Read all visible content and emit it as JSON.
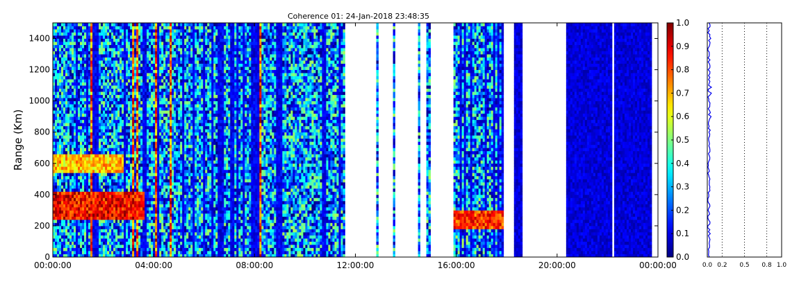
{
  "chart_data": [
    {
      "type": "heatmap",
      "title": "Coherence 01: 24-Jan-2018 23:48:35",
      "xlabel": "",
      "ylabel": "Range (Km)",
      "x_tick_labels": [
        "00:00:00",
        "04:00:00",
        "08:00:00",
        "12:00:00",
        "16:00:00",
        "20:00:00",
        "00:00:00"
      ],
      "x_range_hours": [
        0,
        24
      ],
      "y_ticks": [
        0,
        200,
        400,
        600,
        800,
        1000,
        1200,
        1400
      ],
      "ylim": [
        0,
        1500
      ],
      "colorbar": {
        "colormap": "jet",
        "ticks": [
          "0.0",
          "0.1",
          "0.2",
          "0.3",
          "0.4",
          "0.5",
          "0.6",
          "0.7",
          "0.8",
          "0.9",
          "1.0"
        ],
        "range": [
          0,
          1
        ]
      },
      "data_gaps_hours": [
        [
          11.55,
          12.8
        ],
        [
          12.95,
          13.45
        ],
        [
          13.55,
          14.45
        ],
        [
          14.55,
          14.8
        ],
        [
          14.95,
          15.85
        ],
        [
          17.85,
          18.3
        ],
        [
          18.6,
          20.4
        ],
        [
          22.15,
          22.25
        ],
        [
          23.75,
          24
        ]
      ],
      "low_coherence_blocks_hours": [
        [
          18.3,
          18.6
        ],
        [
          20.4,
          22.15
        ],
        [
          22.25,
          23.75
        ]
      ],
      "strong_echo_bands": [
        {
          "start_hour": 0.0,
          "end_hour": 3.6,
          "range_km": [
            240,
            420
          ],
          "coherence": 0.9
        },
        {
          "start_hour": 0.0,
          "end_hour": 2.8,
          "range_km": [
            540,
            660
          ],
          "coherence": 0.7
        },
        {
          "start_hour": 15.9,
          "end_hour": 17.85,
          "range_km": [
            180,
            300
          ],
          "coherence": 0.85
        }
      ]
    },
    {
      "type": "line",
      "xlim": [
        0,
        1
      ],
      "x_tick_labels": [
        "0.0",
        "0.2",
        "0.5",
        "0.8",
        "1.0"
      ],
      "x_ticks": [
        0,
        0.2,
        0.5,
        0.8,
        1.0
      ],
      "gridlines": [
        0.2,
        0.5,
        0.8
      ],
      "ylim": [
        0,
        1500
      ],
      "mean_value": 0.02
    }
  ]
}
